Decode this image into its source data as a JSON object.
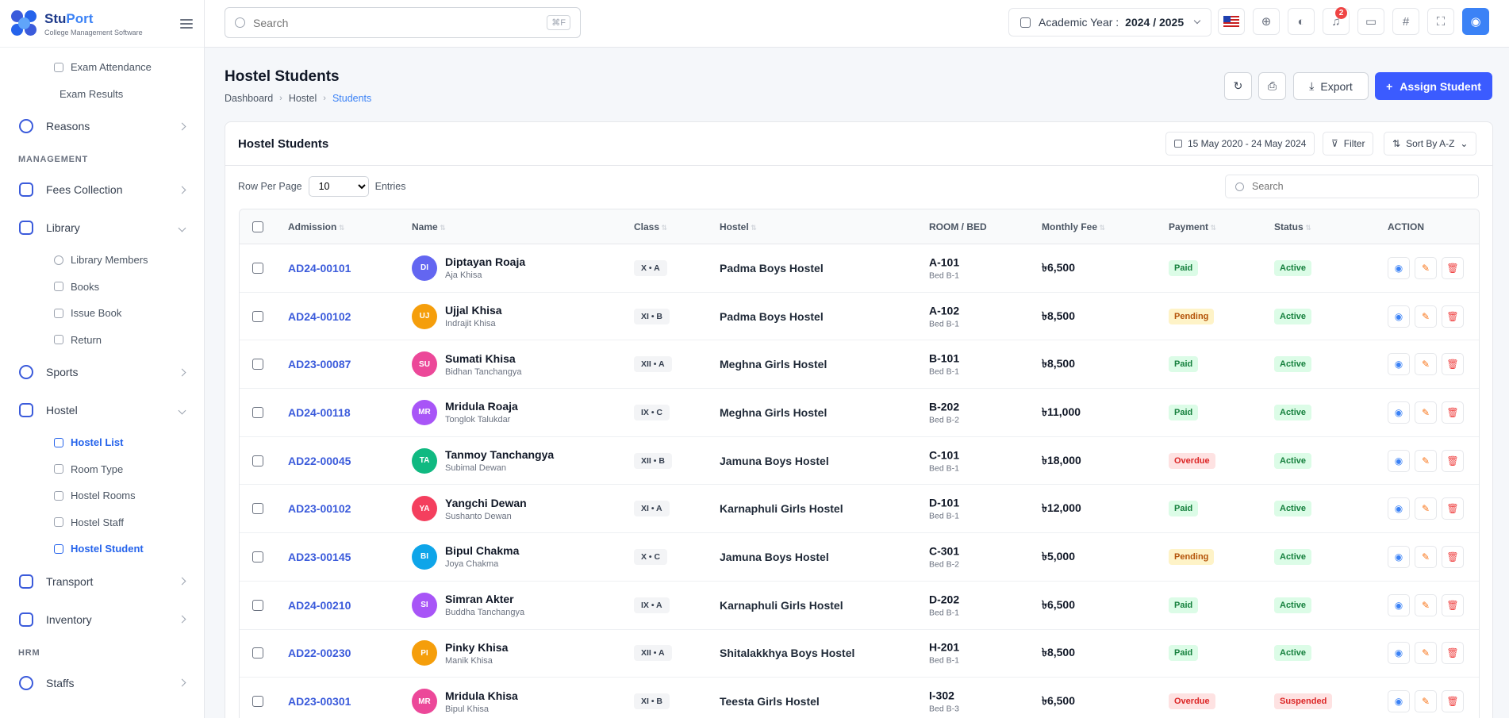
{
  "brand": {
    "name_a": "Stu",
    "name_b": "Port",
    "sub": "College Management Software"
  },
  "sidebar": {
    "top_subs": [
      "Exam Attendance",
      "Exam Results"
    ],
    "reasons": "Reasons",
    "management": "MANAGEMENT",
    "fees": "Fees Collection",
    "library": "Library",
    "library_items": [
      "Library Members",
      "Books",
      "Issue Book",
      "Return"
    ],
    "sports": "Sports",
    "hostel": "Hostel",
    "hostel_items": [
      "Hostel List",
      "Room Type",
      "Hostel Rooms",
      "Hostel Staff",
      "Hostel Student"
    ],
    "transport": "Transport",
    "inventory": "Inventory",
    "hrm": "HRM",
    "staffs": "Staffs"
  },
  "topbar": {
    "search_placeholder": "Search",
    "shortcut": "⌘F",
    "academic_label": "Academic Year :",
    "academic_value": "2024 / 2025",
    "notif_count": "2"
  },
  "page": {
    "title": "Hostel Students",
    "breadcrumb": [
      "Dashboard",
      "Hostel",
      "Students"
    ],
    "export": "Export",
    "assign": "Assign Student"
  },
  "card": {
    "title": "Hostel Students",
    "date_range": "15 May 2020 - 24 May 2024",
    "filter": "Filter",
    "sort": "Sort By A-Z",
    "rows_label": "Row Per Page",
    "rows_value": "10",
    "entries": "Entries",
    "search_placeholder": "Search"
  },
  "columns": [
    "Admission",
    "Name",
    "Class",
    "Hostel",
    "ROOM / BED",
    "Monthly Fee",
    "Payment",
    "Status",
    "ACTION"
  ],
  "students": [
    {
      "adm": "AD24-00101",
      "initials": "DI",
      "color": "#6366f1",
      "name": "Diptayan Roaja",
      "guardian": "Aja Khisa",
      "cls": "X • A",
      "hostel": "Padma Boys Hostel",
      "room": "A-101",
      "bed": "Bed B-1",
      "fee": "৳6,500",
      "payment": "Paid",
      "status": "Active"
    },
    {
      "adm": "AD24-00102",
      "initials": "UJ",
      "color": "#f59e0b",
      "name": "Ujjal Khisa",
      "guardian": "Indrajit Khisa",
      "cls": "XI • B",
      "hostel": "Padma Boys Hostel",
      "room": "A-102",
      "bed": "Bed B-1",
      "fee": "৳8,500",
      "payment": "Pending",
      "status": "Active"
    },
    {
      "adm": "AD23-00087",
      "initials": "SU",
      "color": "#ec4899",
      "name": "Sumati Khisa",
      "guardian": "Bidhan Tanchangya",
      "cls": "XII • A",
      "hostel": "Meghna Girls Hostel",
      "room": "B-101",
      "bed": "Bed B-1",
      "fee": "৳8,500",
      "payment": "Paid",
      "status": "Active"
    },
    {
      "adm": "AD24-00118",
      "initials": "MR",
      "color": "#a855f7",
      "name": "Mridula Roaja",
      "guardian": "Tonglok Talukdar",
      "cls": "IX • C",
      "hostel": "Meghna Girls Hostel",
      "room": "B-202",
      "bed": "Bed B-2",
      "fee": "৳11,000",
      "payment": "Paid",
      "status": "Active"
    },
    {
      "adm": "AD22-00045",
      "initials": "TA",
      "color": "#10b981",
      "name": "Tanmoy Tanchangya",
      "guardian": "Subimal Dewan",
      "cls": "XII • B",
      "hostel": "Jamuna Boys Hostel",
      "room": "C-101",
      "bed": "Bed B-1",
      "fee": "৳18,000",
      "payment": "Overdue",
      "status": "Active"
    },
    {
      "adm": "AD23-00102",
      "initials": "YA",
      "color": "#f43f5e",
      "name": "Yangchi Dewan",
      "guardian": "Sushanto Dewan",
      "cls": "XI • A",
      "hostel": "Karnaphuli Girls Hostel",
      "room": "D-101",
      "bed": "Bed B-1",
      "fee": "৳12,000",
      "payment": "Paid",
      "status": "Active"
    },
    {
      "adm": "AD23-00145",
      "initials": "BI",
      "color": "#0ea5e9",
      "name": "Bipul Chakma",
      "guardian": "Joya Chakma",
      "cls": "X • C",
      "hostel": "Jamuna Boys Hostel",
      "room": "C-301",
      "bed": "Bed B-2",
      "fee": "৳5,000",
      "payment": "Pending",
      "status": "Active"
    },
    {
      "adm": "AD24-00210",
      "initials": "SI",
      "color": "#a855f7",
      "name": "Simran Akter",
      "guardian": "Buddha Tanchangya",
      "cls": "IX • A",
      "hostel": "Karnaphuli Girls Hostel",
      "room": "D-202",
      "bed": "Bed B-1",
      "fee": "৳6,500",
      "payment": "Paid",
      "status": "Active"
    },
    {
      "adm": "AD22-00230",
      "initials": "PI",
      "color": "#f59e0b",
      "name": "Pinky Khisa",
      "guardian": "Manik Khisa",
      "cls": "XII • A",
      "hostel": "Shitalakkhya Boys Hostel",
      "room": "H-201",
      "bed": "Bed B-1",
      "fee": "৳8,500",
      "payment": "Paid",
      "status": "Active"
    },
    {
      "adm": "AD23-00301",
      "initials": "MR",
      "color": "#ec4899",
      "name": "Mridula Khisa",
      "guardian": "Bipul Khisa",
      "cls": "XI • B",
      "hostel": "Teesta Girls Hostel",
      "room": "I-302",
      "bed": "Bed B-3",
      "fee": "৳6,500",
      "payment": "Overdue",
      "status": "Suspended"
    }
  ]
}
